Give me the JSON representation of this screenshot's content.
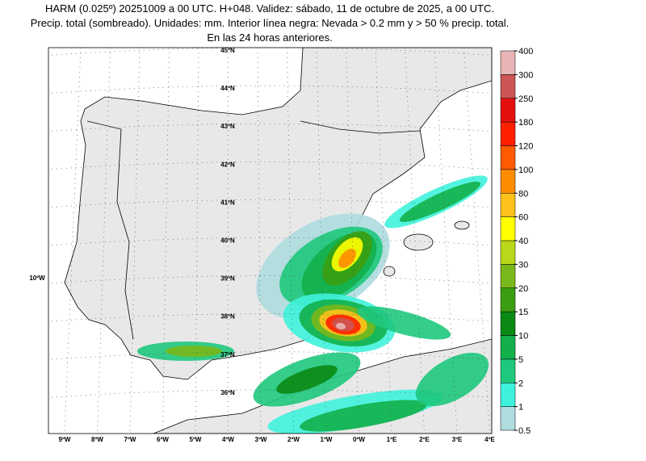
{
  "header": {
    "lines": [
      "HARM (0.025º) 20251009 a 00 UTC. H+048. Validez: sábado, 11 de octubre de 2025, a 00 UTC.",
      "Precip. total (sombreado). Unidades: mm. Interior línea negra: Nevada > 0.2 mm y > 50 % precip. total.",
      "En las 24 horas anteriores."
    ]
  },
  "map": {
    "lat_labels": [
      "45ºN",
      "44ºN",
      "43ºN",
      "42ºN",
      "41ºN",
      "40ºN",
      "39ºN",
      "38ºN",
      "37ºN",
      "36ºN"
    ],
    "lon_labels": [
      "9ºW",
      "8ºW",
      "7ºW",
      "6ºW",
      "5ºW",
      "4ºW",
      "3ºW",
      "2ºW",
      "1ºW",
      "0ºW",
      "1ºE",
      "2ºE",
      "3ºE",
      "4ºE"
    ],
    "side_label": "10ºW"
  },
  "legend": {
    "labels": [
      "0.5",
      "1",
      "2",
      "5",
      "10",
      "15",
      "20",
      "30",
      "40",
      "60",
      "80",
      "100",
      "120",
      "180",
      "250",
      "300",
      "400"
    ],
    "colors": [
      "#aedcdf",
      "#3ff2dc",
      "#1ec87c",
      "#12b04a",
      "#0a8a14",
      "#3a9e10",
      "#79b81a",
      "#bad81a",
      "#ffff00",
      "#ffc21a",
      "#ff8c00",
      "#ff5a00",
      "#ff2000",
      "#e41010",
      "#cc5555",
      "#e7b5b5"
    ]
  }
}
